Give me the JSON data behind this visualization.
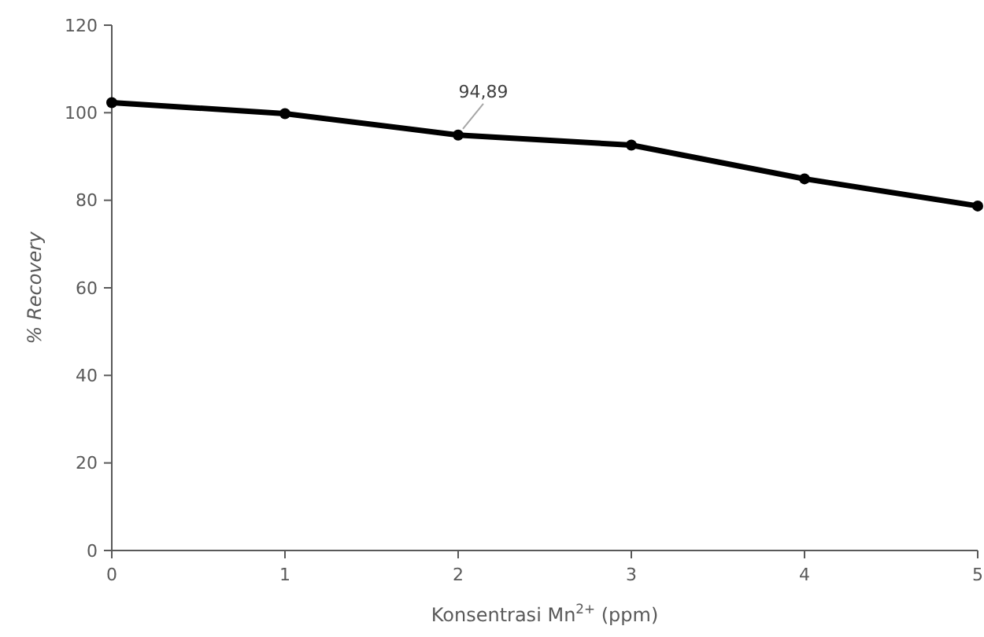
{
  "chart_data": {
    "type": "line",
    "xlabel": "Konsentrasi Mn$^{2+}$ (ppm)",
    "ylabel": "% Recovery",
    "x": [
      0,
      1,
      2,
      3,
      4,
      5
    ],
    "series": [
      {
        "color": "#000000",
        "values": [
          102.3,
          99.8,
          94.89,
          92.6,
          84.9,
          78.7
        ]
      }
    ],
    "xlim": [
      0,
      5
    ],
    "xticks": [
      0,
      1,
      2,
      3,
      4,
      5
    ],
    "ylim": [
      0,
      120
    ],
    "yticks": [
      0,
      20,
      40,
      60,
      80,
      100,
      120
    ],
    "annotations": [
      {
        "text": "94,89",
        "x": 2,
        "y": 94.89
      }
    ],
    "marker": "circle",
    "line_style": "solid",
    "grid": false
  }
}
